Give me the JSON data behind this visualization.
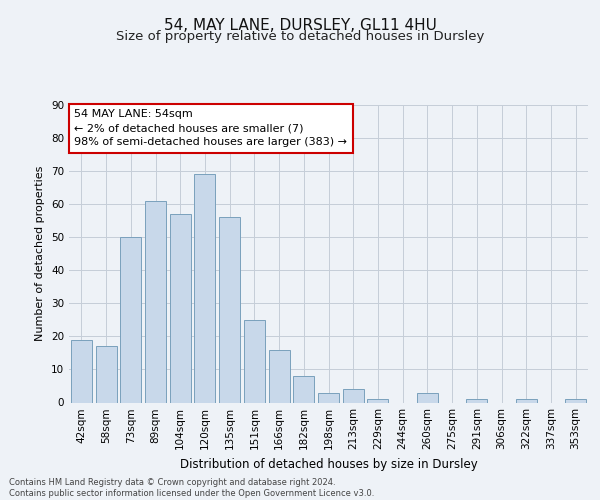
{
  "title1": "54, MAY LANE, DURSLEY, GL11 4HU",
  "title2": "Size of property relative to detached houses in Dursley",
  "xlabel": "Distribution of detached houses by size in Dursley",
  "ylabel": "Number of detached properties",
  "categories": [
    "42sqm",
    "58sqm",
    "73sqm",
    "89sqm",
    "104sqm",
    "120sqm",
    "135sqm",
    "151sqm",
    "166sqm",
    "182sqm",
    "198sqm",
    "213sqm",
    "229sqm",
    "244sqm",
    "260sqm",
    "275sqm",
    "291sqm",
    "306sqm",
    "322sqm",
    "337sqm",
    "353sqm"
  ],
  "values": [
    19,
    17,
    50,
    61,
    57,
    69,
    56,
    25,
    16,
    8,
    3,
    4,
    1,
    0,
    3,
    0,
    1,
    0,
    1,
    0,
    1
  ],
  "bar_color": "#c8d8ea",
  "bar_edge_color": "#7aa0bc",
  "annotation_text": "54 MAY LANE: 54sqm\n← 2% of detached houses are smaller (7)\n98% of semi-detached houses are larger (383) →",
  "annotation_box_color": "#ffffff",
  "annotation_box_edge_color": "#cc0000",
  "ylim": [
    0,
    90
  ],
  "yticks": [
    0,
    10,
    20,
    30,
    40,
    50,
    60,
    70,
    80,
    90
  ],
  "background_color": "#eef2f7",
  "plot_background": "#eef2f7",
  "footer": "Contains HM Land Registry data © Crown copyright and database right 2024.\nContains public sector information licensed under the Open Government Licence v3.0.",
  "title1_fontsize": 11,
  "title2_fontsize": 9.5,
  "xlabel_fontsize": 8.5,
  "ylabel_fontsize": 8,
  "tick_fontsize": 7.5,
  "annotation_fontsize": 8,
  "footer_fontsize": 6
}
